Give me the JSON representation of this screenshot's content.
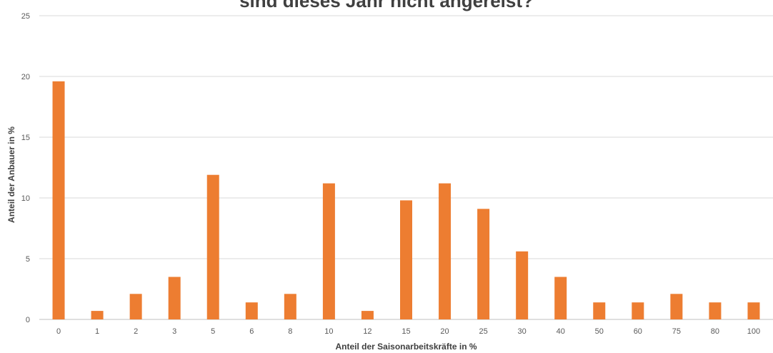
{
  "chart_data": {
    "type": "bar",
    "title": "sind dieses Jahr nicht angereist?",
    "xlabel": "Anteil der Saisonarbeitskräfte in %",
    "ylabel": "Anteil der Anbauer in %",
    "categories": [
      "0",
      "1",
      "2",
      "3",
      "5",
      "6",
      "8",
      "10",
      "12",
      "15",
      "20",
      "25",
      "30",
      "40",
      "50",
      "60",
      "75",
      "80",
      "100"
    ],
    "values": [
      19.6,
      0.7,
      2.1,
      3.5,
      11.9,
      1.4,
      2.1,
      11.2,
      0.7,
      9.8,
      11.2,
      9.1,
      5.6,
      3.5,
      1.4,
      1.4,
      2.1,
      1.4,
      1.4
    ],
    "ylim": [
      0,
      25
    ],
    "yticks": [
      "0",
      "5",
      "10",
      "15",
      "20",
      "25"
    ],
    "grid": true,
    "legend": "none",
    "bar_color": "#ED7D31"
  }
}
